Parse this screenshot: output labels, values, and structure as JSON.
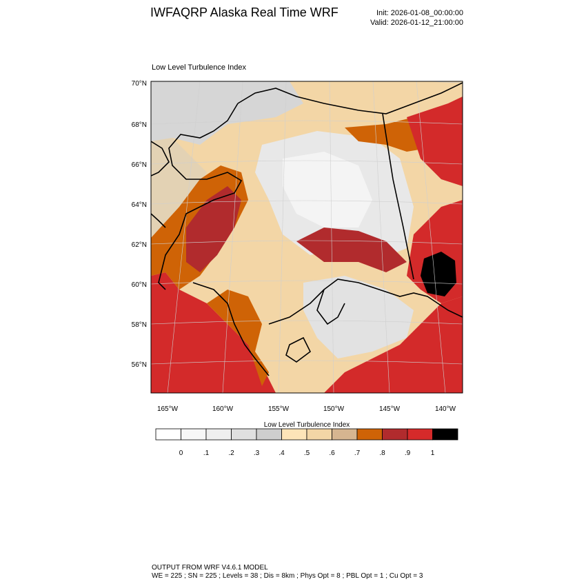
{
  "header": {
    "title": "IWFAQRP Alaska Real Time WRF",
    "init": "Init: 2026-01-08_00:00:00",
    "valid": "Valid: 2026-01-12_21:00:00"
  },
  "map": {
    "field_label": "Low Level Turbulence Index",
    "lat_labels": [
      "70°N",
      "68°N",
      "66°N",
      "64°N",
      "62°N",
      "60°N",
      "58°N",
      "56°N"
    ],
    "lon_labels": [
      "165°W",
      "160°W",
      "155°W",
      "150°W",
      "145°W",
      "140°W"
    ],
    "ocean_color": "#d32a2a",
    "coastline_color": "#000000"
  },
  "colorbar": {
    "title": "Low Level Turbulence Index",
    "boundaries": [
      "0",
      ".1",
      ".2",
      ".3",
      ".4",
      ".5",
      ".6",
      ".7",
      ".8",
      ".9",
      "1"
    ],
    "colors": [
      "#ffffff",
      "#f7f7f7",
      "#efefef",
      "#e0e0e0",
      "#cecece",
      "#fde4b8",
      "#f3d6a6",
      "#d6b590",
      "#cf6306",
      "#b12b2d",
      "#d52a2a",
      "#000000"
    ]
  },
  "footer": {
    "line1": "OUTPUT FROM WRF V4.6.1 MODEL",
    "line2": "WE = 225 ; SN = 225 ; Levels = 38 ; Dis = 8km ; Phys Opt = 8 ; PBL Opt = 1 ; Cu Opt = 3"
  }
}
